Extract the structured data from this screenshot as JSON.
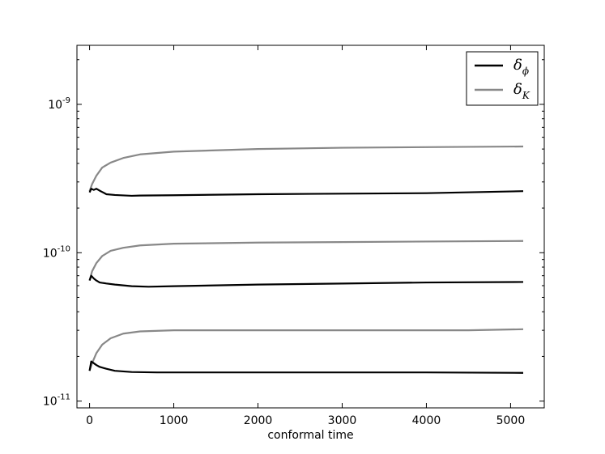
{
  "chart_data": {
    "type": "line",
    "xlabel": "conformal time",
    "ylabel": "",
    "xlim": [
      -150,
      5400
    ],
    "ylim": [
      9e-12,
      2.5e-09
    ],
    "yscale": "log",
    "grid": false,
    "legend_position": "top-right",
    "x_ticks": [
      0,
      1000,
      2000,
      3000,
      4000,
      5000
    ],
    "x_tick_labels": [
      "0",
      "1000",
      "2000",
      "3000",
      "4000",
      "5000"
    ],
    "y_ticks": [
      1e-11,
      1e-10,
      1e-09
    ],
    "y_tick_labels": [
      {
        "base": "10",
        "exp": "-11"
      },
      {
        "base": "10",
        "exp": "-10"
      },
      {
        "base": "10",
        "exp": "-9"
      }
    ],
    "legend": [
      {
        "base": "δ",
        "sub": "ϕ",
        "color": "#000000"
      },
      {
        "base": "δ",
        "sub": "K",
        "color": "#888888"
      }
    ],
    "series": [
      {
        "legend_index": 1,
        "color": "#888888",
        "x": [
          0,
          30,
          80,
          150,
          250,
          400,
          600,
          1000,
          2000,
          3000,
          4000,
          5150
        ],
        "y": [
          2.6e-10,
          2.9e-10,
          3.3e-10,
          3.75e-10,
          4.05e-10,
          4.35e-10,
          4.6e-10,
          4.8e-10,
          5e-10,
          5.1e-10,
          5.15e-10,
          5.2e-10
        ]
      },
      {
        "legend_index": 0,
        "color": "#000000",
        "x": [
          0,
          20,
          50,
          80,
          120,
          200,
          300,
          500,
          600,
          1000,
          2000,
          3000,
          4000,
          5150
        ],
        "y": [
          2.55e-10,
          2.7e-10,
          2.65e-10,
          2.7e-10,
          2.62e-10,
          2.48e-10,
          2.45e-10,
          2.42e-10,
          2.43e-10,
          2.44e-10,
          2.48e-10,
          2.5e-10,
          2.52e-10,
          2.6e-10
        ]
      },
      {
        "legend_index": 1,
        "color": "#888888",
        "x": [
          0,
          30,
          80,
          150,
          250,
          400,
          600,
          1000,
          2000,
          3000,
          4000,
          5150
        ],
        "y": [
          6.5e-11,
          7.5e-11,
          8.5e-11,
          9.5e-11,
          1.03e-10,
          1.08e-10,
          1.12e-10,
          1.15e-10,
          1.17e-10,
          1.18e-10,
          1.19e-10,
          1.2e-10
        ]
      },
      {
        "legend_index": 0,
        "color": "#000000",
        "x": [
          0,
          20,
          50,
          80,
          120,
          200,
          300,
          500,
          700,
          1000,
          2000,
          3000,
          4000,
          5150
        ],
        "y": [
          6.5e-11,
          7e-11,
          6.7e-11,
          6.5e-11,
          6.3e-11,
          6.2e-11,
          6.1e-11,
          5.95e-11,
          5.9e-11,
          5.95e-11,
          6.1e-11,
          6.2e-11,
          6.3e-11,
          6.35e-11
        ]
      },
      {
        "legend_index": 1,
        "color": "#888888",
        "x": [
          0,
          30,
          80,
          150,
          250,
          400,
          600,
          1000,
          2000,
          3000,
          4000,
          4500,
          5150
        ],
        "y": [
          1.6e-11,
          1.8e-11,
          2.1e-11,
          2.4e-11,
          2.65e-11,
          2.85e-11,
          2.95e-11,
          3e-11,
          3e-11,
          3e-11,
          3e-11,
          3e-11,
          3.05e-11
        ]
      },
      {
        "legend_index": 0,
        "color": "#000000",
        "x": [
          0,
          20,
          50,
          80,
          120,
          200,
          300,
          500,
          800,
          1000,
          2000,
          3000,
          4000,
          5150
        ],
        "y": [
          1.6e-11,
          1.85e-11,
          1.8e-11,
          1.75e-11,
          1.7e-11,
          1.65e-11,
          1.6e-11,
          1.57e-11,
          1.56e-11,
          1.56e-11,
          1.56e-11,
          1.56e-11,
          1.56e-11,
          1.55e-11
        ]
      }
    ]
  }
}
